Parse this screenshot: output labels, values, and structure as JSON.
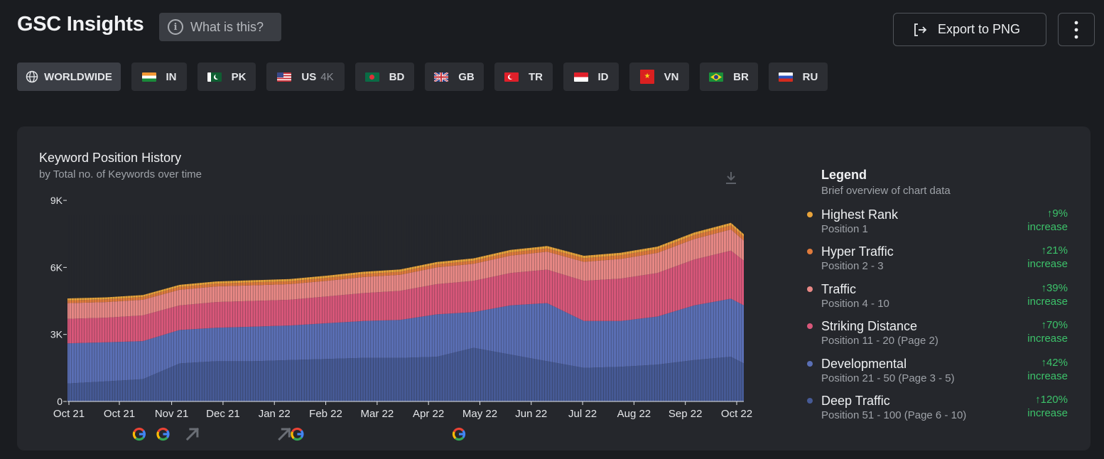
{
  "header": {
    "title": "GSC Insights",
    "what_label": "What is this?",
    "export_label": "Export to PNG"
  },
  "countries": [
    {
      "code": "WORLDWIDE",
      "icon": "globe-icon",
      "active": true
    },
    {
      "code": "IN",
      "icon": "flag-in-icon"
    },
    {
      "code": "PK",
      "icon": "flag-pk-icon"
    },
    {
      "code": "US",
      "extra": "4K",
      "icon": "flag-us-icon"
    },
    {
      "code": "BD",
      "icon": "flag-bd-icon"
    },
    {
      "code": "GB",
      "icon": "flag-gb-icon"
    },
    {
      "code": "TR",
      "icon": "flag-tr-icon"
    },
    {
      "code": "ID",
      "icon": "flag-id-icon"
    },
    {
      "code": "VN",
      "icon": "flag-vn-icon"
    },
    {
      "code": "BR",
      "icon": "flag-br-icon"
    },
    {
      "code": "RU",
      "icon": "flag-ru-icon"
    }
  ],
  "legend": {
    "title": "Legend",
    "subtitle": "Brief overview of chart data",
    "items": [
      {
        "name": "Highest Rank",
        "position": "Position 1",
        "change": "↑9%",
        "label": "increase",
        "color": "#e8a33b"
      },
      {
        "name": "Hyper Traffic",
        "position": "Position 2 - 3",
        "change": "↑21%",
        "label": "increase",
        "color": "#e07b3c"
      },
      {
        "name": "Traffic",
        "position": "Position 4 - 10",
        "change": "↑39%",
        "label": "increase",
        "color": "#e88885"
      },
      {
        "name": "Striking Distance",
        "position": "Position 11 - 20 (Page 2)",
        "change": "↑70%",
        "label": "increase",
        "color": "#d9577a"
      },
      {
        "name": "Developmental",
        "position": "Position 21 - 50 (Page 3 - 5)",
        "change": "↑42%",
        "label": "increase",
        "color": "#5a6fb5"
      },
      {
        "name": "Deep Traffic",
        "position": "Position 51 - 100 (Page 6 - 10)",
        "change": "↑120%",
        "label": "increase",
        "color": "#465a96"
      }
    ]
  },
  "chart_data": {
    "type": "area",
    "title": "Keyword Position History",
    "subtitle": "by Total no. of Keywords over time",
    "stacked": true,
    "x_label_ticks": [
      "Oct 21",
      "Oct 21",
      "Nov 21",
      "Dec 21",
      "Jan 22",
      "Feb 22",
      "Mar 22",
      "Apr 22",
      "May 22",
      "Jun 22",
      "Jul 22",
      "Aug 22",
      "Sep 22",
      "Oct 22"
    ],
    "y_ticks": [
      "0",
      "3K",
      "6K",
      "9K"
    ],
    "ylim": [
      0,
      9000
    ],
    "x": [
      "2021-10-01",
      "2021-10-22",
      "2021-11-11",
      "2021-12-01",
      "2021-12-21",
      "2022-01-10",
      "2022-01-30",
      "2022-02-19",
      "2022-03-11",
      "2022-03-31",
      "2022-04-20",
      "2022-05-10",
      "2022-05-30",
      "2022-06-19",
      "2022-07-09",
      "2022-07-29",
      "2022-08-18",
      "2022-09-07",
      "2022-09-27",
      "2022-10-04"
    ],
    "series": [
      {
        "name": "Deep Traffic",
        "color": "#465a96",
        "values": [
          800,
          900,
          1000,
          1700,
          1800,
          1800,
          1850,
          1900,
          1950,
          1950,
          2000,
          2400,
          2100,
          1800,
          1500,
          1550,
          1650,
          1850,
          2000,
          1700
        ]
      },
      {
        "name": "Developmental",
        "color": "#5a6fb5",
        "values": [
          1800,
          1750,
          1700,
          1500,
          1500,
          1550,
          1550,
          1600,
          1650,
          1700,
          1900,
          1600,
          2200,
          2600,
          2100,
          2050,
          2150,
          2450,
          2600,
          2600
        ]
      },
      {
        "name": "Striking Distance",
        "color": "#d9577a",
        "values": [
          1100,
          1100,
          1150,
          1100,
          1150,
          1150,
          1150,
          1200,
          1250,
          1300,
          1350,
          1400,
          1450,
          1500,
          1800,
          1900,
          1950,
          2050,
          2150,
          2000
        ]
      },
      {
        "name": "Traffic",
        "color": "#e88885",
        "values": [
          700,
          700,
          700,
          700,
          700,
          700,
          700,
          700,
          720,
          720,
          750,
          760,
          780,
          800,
          850,
          880,
          900,
          920,
          950,
          900
        ]
      },
      {
        "name": "Hyper Traffic",
        "color": "#e07b3c",
        "values": [
          120,
          120,
          125,
          125,
          125,
          130,
          130,
          130,
          135,
          135,
          140,
          140,
          145,
          150,
          160,
          165,
          170,
          175,
          180,
          175
        ]
      },
      {
        "name": "Highest Rank",
        "color": "#e8a33b",
        "values": [
          90,
          90,
          90,
          95,
          95,
          95,
          95,
          100,
          100,
          100,
          100,
          105,
          105,
          105,
          110,
          110,
          110,
          115,
          115,
          110
        ]
      }
    ],
    "annotations": [
      {
        "date": "2021-11-09",
        "icon": "google-update-icon"
      },
      {
        "date": "2021-11-22",
        "icon": "google-update-icon"
      },
      {
        "date": "2021-12-08",
        "icon": "trend-arrow-icon"
      },
      {
        "date": "2022-01-27",
        "icon": "trend-arrow-icon"
      },
      {
        "date": "2022-02-03",
        "icon": "google-update-icon"
      },
      {
        "date": "2022-05-02",
        "icon": "google-update-icon"
      }
    ],
    "grid": false,
    "legend_position": "right"
  }
}
